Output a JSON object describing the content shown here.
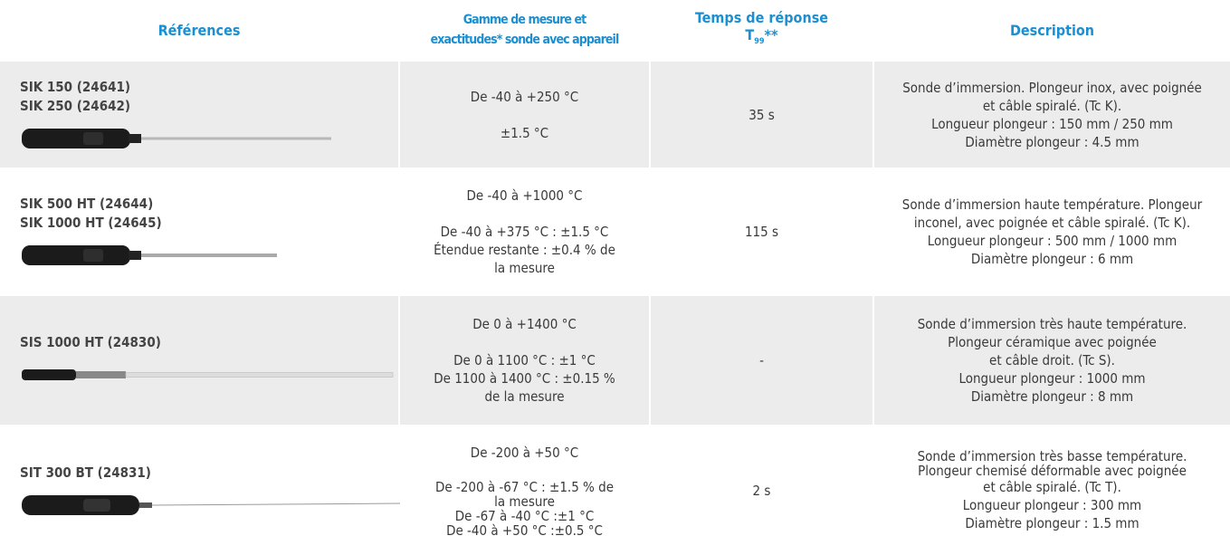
{
  "header": {
    "references": "Références",
    "range": [
      "Gamme de mesure et",
      "exactitudes* sonde avec appareil"
    ],
    "response": {
      "title": "Temps de réponse",
      "symbol": "T",
      "subscript": "99",
      "mark": "**"
    },
    "description": "Description"
  },
  "rows": [
    {
      "references": [
        "SIK 150 (24641)",
        "SIK 250 (24642)"
      ],
      "range": {
        "main": "De -40 à +250 °C",
        "detail": [
          "±1.5 °C"
        ]
      },
      "response": "35 s",
      "description": [
        "Sonde d’immersion. Plongeur inox, avec poignée",
        "et câble spiralé. (Tc K).",
        "Longueur plongeur : 150 mm / 250 mm",
        "Diamètre plongeur : 4.5 mm"
      ]
    },
    {
      "references": [
        "SIK 500 HT (24644)",
        "SIK 1000 HT (24645)"
      ],
      "range": {
        "main": "De -40 à +1000 °C",
        "detail": [
          "De -40 à +375 °C : ±1.5 °C",
          "Étendue restante : ±0.4 % de",
          "la mesure"
        ]
      },
      "response": "115 s",
      "description": [
        "Sonde d’immersion haute température. Plongeur",
        "inconel, avec poignée et câble spiralé. (Tc K).",
        "Longueur plongeur : 500 mm / 1000 mm",
        "Diamètre plongeur : 6 mm"
      ]
    },
    {
      "references": [
        "SIS 1000 HT (24830)"
      ],
      "range": {
        "main": "De 0 à +1400 °C",
        "detail": [
          "De 0 à 1100 °C : ±1 °C",
          "De 1100 à 1400 °C : ±0.15 %",
          "de la mesure"
        ]
      },
      "response": "-",
      "description": [
        "Sonde d’immersion très haute température.",
        "Plongeur céramique avec poignée",
        "et câble droit. (Tc S).",
        "Longueur plongeur : 1000 mm",
        "Diamètre plongeur : 8 mm"
      ]
    },
    {
      "references": [
        "SIT 300 BT (24831)"
      ],
      "range": {
        "main": "De -200 à +50 °C",
        "detail": [
          "De -200 à -67 °C : ±1.5 % de",
          "la mesure",
          "De -67 à -40 °C :±1 °C",
          "De -40 à +50 °C :±0.5 °C"
        ]
      },
      "response": "2 s",
      "description": [
        "Sonde d’immersion très basse température.",
        "Plongeur chemisé déformable avec poignée",
        "et câble spiralé. (Tc T).",
        "Longueur plongeur : 300 mm",
        "Diamètre plongeur : 1.5 mm"
      ]
    }
  ]
}
